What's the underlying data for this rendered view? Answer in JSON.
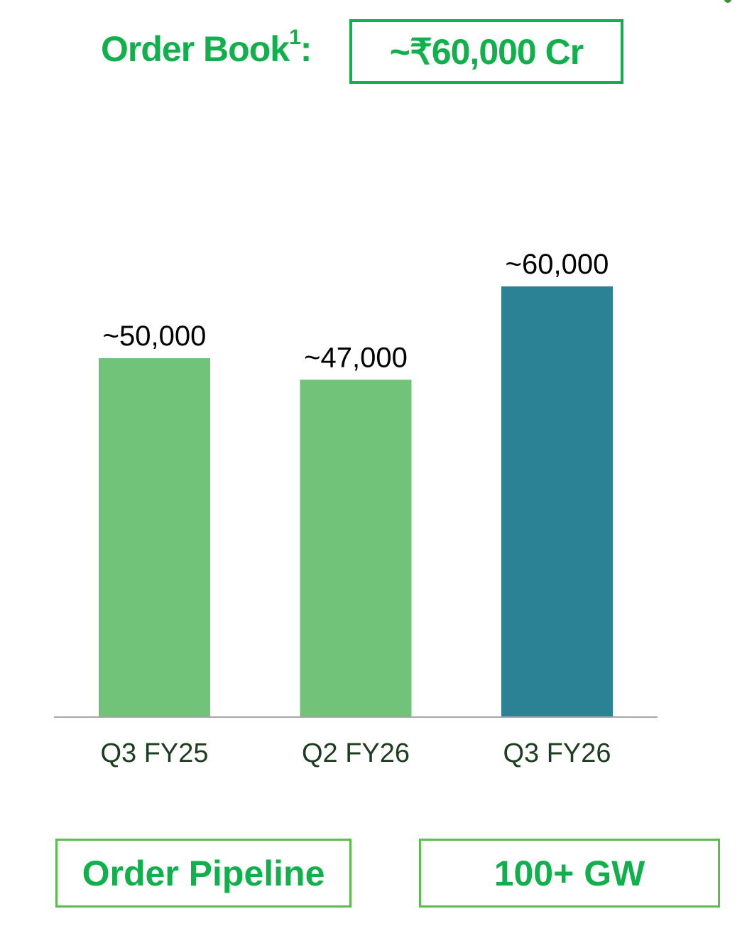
{
  "header": {
    "title": "Order Book",
    "superscript": "1",
    "colon": ":",
    "value": "~₹60,000 Cr"
  },
  "chart_data": {
    "type": "bar",
    "categories": [
      "Q3 FY25",
      "Q2 FY26",
      "Q3 FY26"
    ],
    "values": [
      50000,
      47000,
      60000
    ],
    "data_labels": [
      "~50,000",
      "~47,000",
      "~60,000"
    ],
    "colors": [
      "#71c37a",
      "#71c37a",
      "#2b8294"
    ],
    "ylim": [
      0,
      60000
    ],
    "grid": false
  },
  "footer": {
    "pipeline_label": "Order Pipeline",
    "pipeline_value": "100+ GW"
  },
  "colors": {
    "accent": "#12b04c",
    "axis": "#a6a6a6",
    "tick_text": "#1d3d1f"
  }
}
